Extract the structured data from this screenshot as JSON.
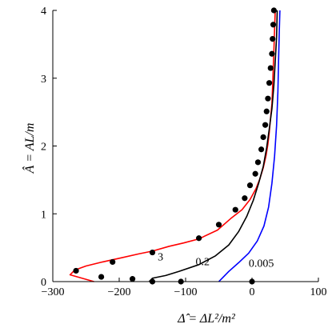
{
  "chart_data": {
    "type": "line",
    "title": "",
    "xlabel": "Δ̂ = ΔL²/m²",
    "ylabel": "Â = AL/m",
    "xlim": [
      -300,
      100
    ],
    "ylim": [
      0,
      4
    ],
    "x_ticks": [
      -300,
      -200,
      -100,
      0,
      100
    ],
    "y_ticks": [
      0,
      1,
      2,
      3,
      4
    ],
    "grid": false,
    "series": [
      {
        "name": "3",
        "kind": "line",
        "color": "#ff0000",
        "x": [
          -238,
          -274,
          -267,
          -250,
          -225,
          -197,
          -170,
          -150,
          -125,
          -103,
          -80,
          -52,
          -32,
          -15,
          -3,
          6,
          12,
          17,
          21,
          24,
          26,
          28,
          30,
          31,
          32,
          33,
          34,
          35
        ],
        "y": [
          0.0,
          0.1,
          0.17,
          0.23,
          0.29,
          0.35,
          0.41,
          0.45,
          0.52,
          0.57,
          0.63,
          0.76,
          0.93,
          1.06,
          1.21,
          1.37,
          1.52,
          1.68,
          1.85,
          2.03,
          2.2,
          2.42,
          2.62,
          2.87,
          3.15,
          3.42,
          3.72,
          4.0
        ]
      },
      {
        "name": "0.2",
        "kind": "line",
        "color": "#000000",
        "x": [
          -155,
          -150,
          -130,
          -110,
          -80,
          -55,
          -35,
          -20,
          -8,
          2,
          10,
          17,
          22,
          26,
          30,
          33,
          35,
          37,
          38
        ],
        "y": [
          0.0,
          0.05,
          0.09,
          0.15,
          0.25,
          0.38,
          0.54,
          0.74,
          0.96,
          1.2,
          1.45,
          1.7,
          1.97,
          2.25,
          2.55,
          2.9,
          3.25,
          3.6,
          4.0
        ]
      },
      {
        "name": "0.005",
        "kind": "line",
        "color": "#0000ff",
        "x": [
          -50,
          -45,
          -35,
          -20,
          -5,
          8,
          18,
          25,
          30,
          34,
          37,
          39,
          40,
          41,
          42
        ],
        "y": [
          0.0,
          0.05,
          0.15,
          0.28,
          0.42,
          0.6,
          0.82,
          1.1,
          1.45,
          1.85,
          2.3,
          2.8,
          3.25,
          3.65,
          4.0
        ]
      },
      {
        "name": "",
        "kind": "scatter",
        "color": "#000000",
        "x": [
          -265,
          -227,
          -210,
          -180,
          -150,
          -107,
          -80,
          -50,
          -25,
          -11,
          -3,
          5,
          9,
          14,
          17,
          20,
          22,
          24,
          26,
          28,
          30,
          31,
          32,
          33
        ],
        "y": [
          0.16,
          0.07,
          0.29,
          0.04,
          0.43,
          0.0,
          0.64,
          0.84,
          1.06,
          1.23,
          1.42,
          1.59,
          1.76,
          1.95,
          2.13,
          2.31,
          2.51,
          2.7,
          2.93,
          3.15,
          3.36,
          3.58,
          3.79,
          4.0
        ]
      },
      {
        "name": "",
        "kind": "scatter",
        "color": "#000000",
        "x": [
          -150,
          0
        ],
        "y": [
          0.0,
          0.0
        ]
      }
    ],
    "annotations": [
      {
        "text": "3",
        "x": -142,
        "y": 0.31
      },
      {
        "text": "0.2",
        "x": -85,
        "y": 0.24
      },
      {
        "text": "0.005",
        "x": -5,
        "y": 0.22
      }
    ]
  }
}
